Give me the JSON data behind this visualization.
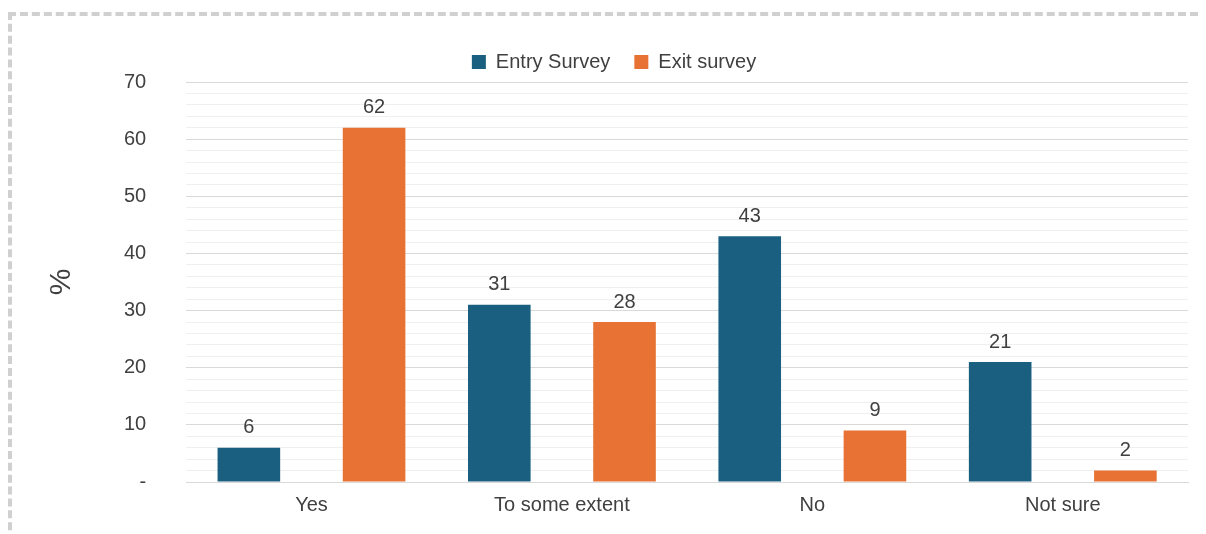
{
  "chart_data": {
    "type": "bar",
    "ylabel": "%",
    "categories": [
      "Yes",
      "To some extent",
      "No",
      "Not sure"
    ],
    "series": [
      {
        "name": "Entry Survey",
        "color": "#1a5e80",
        "values": [
          6,
          31,
          43,
          21
        ]
      },
      {
        "name": "Exit survey",
        "color": "#e87234",
        "values": [
          62,
          28,
          9,
          2
        ]
      }
    ],
    "ylim": [
      0,
      70
    ],
    "yticks": [
      {
        "value": 0,
        "label": "-"
      },
      {
        "value": 2,
        "label": null
      },
      {
        "value": 4,
        "label": null
      },
      {
        "value": 6,
        "label": null
      },
      {
        "value": 8,
        "label": null
      },
      10,
      {
        "value": 12,
        "label": null
      },
      {
        "value": 14,
        "label": null
      },
      {
        "value": 16,
        "label": null
      },
      {
        "value": 18,
        "label": null
      },
      20,
      {
        "value": 22,
        "label": null
      },
      {
        "value": 24,
        "label": null
      },
      {
        "value": 26,
        "label": null
      },
      {
        "value": 28,
        "label": null
      },
      30,
      {
        "value": 32,
        "label": null
      },
      {
        "value": 34,
        "label": null
      },
      {
        "value": 36,
        "label": null
      },
      {
        "value": 38,
        "label": null
      },
      40,
      {
        "value": 42,
        "label": null
      },
      {
        "value": 44,
        "label": null
      },
      {
        "value": 46,
        "label": null
      },
      {
        "value": 48,
        "label": null
      },
      50,
      {
        "value": 52,
        "label": null
      },
      {
        "value": 54,
        "label": null
      },
      {
        "value": 56,
        "label": null
      },
      {
        "value": 58,
        "label": null
      },
      60,
      {
        "value": 62,
        "label": null
      },
      {
        "value": 64,
        "label": null
      },
      {
        "value": 66,
        "label": null
      },
      {
        "value": 68,
        "label": null
      },
      70
    ],
    "grid": "y",
    "legend": "top",
    "data_labels": true
  }
}
